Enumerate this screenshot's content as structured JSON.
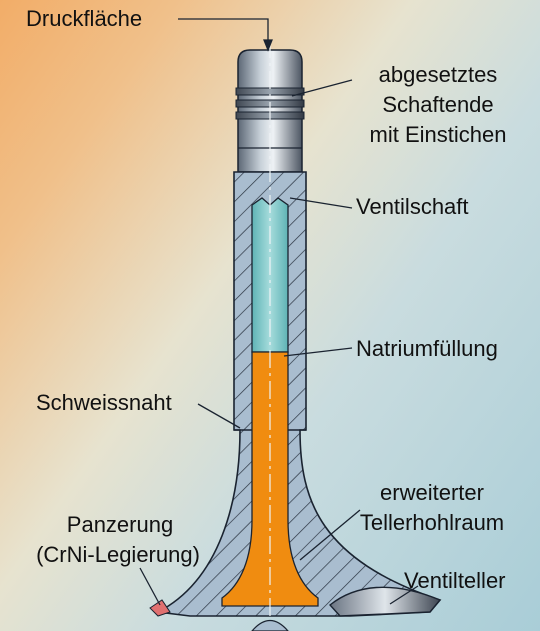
{
  "labels": {
    "druckflaeche": "Druckfläche",
    "schaftende": [
      "abgesetztes",
      "Schaftende",
      "mit Einstichen"
    ],
    "ventilschaft": "Ventilschaft",
    "natrium": "Natriumfüllung",
    "schweissnaht": "Schweissnaht",
    "tellerhohlraum": [
      "erweiterter",
      "Tellerhohlraum"
    ],
    "panzerung": [
      "Panzerung",
      "(CrNi-Legierung)"
    ],
    "ventilteller": "Ventilteller"
  },
  "colors": {
    "sodium": "#f08c10",
    "cavity": "#7ec8c8",
    "steel_dark": "#55606e",
    "steel_light": "#e6ebef",
    "outline": "#1a2330",
    "hatch": "#2a3340",
    "armor": "#e07070"
  }
}
